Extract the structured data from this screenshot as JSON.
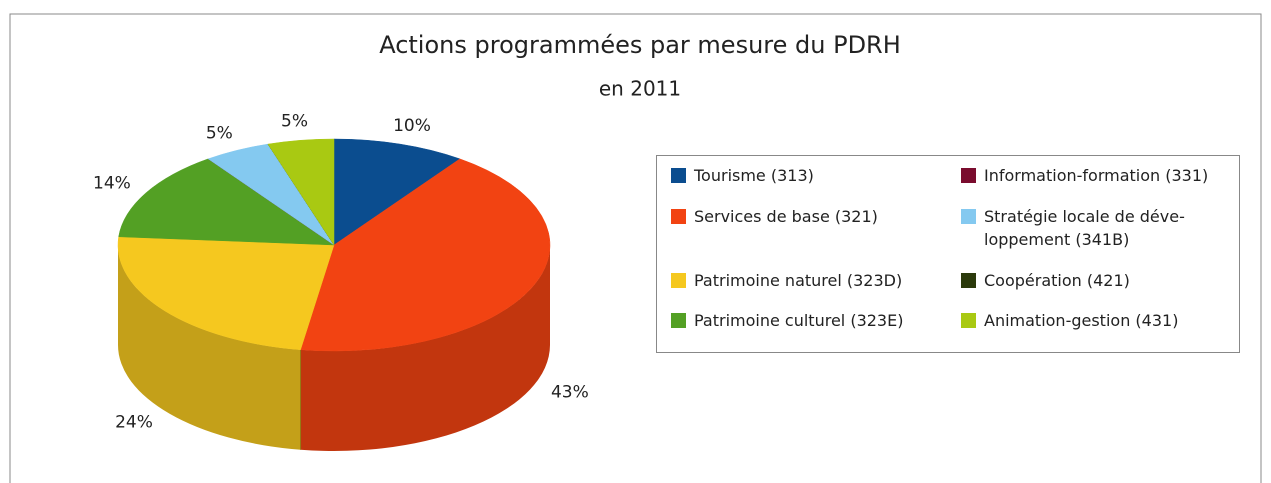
{
  "chart_data": {
    "type": "pie3d",
    "title": "Actions programmées par mesure du PDRH",
    "subtitle": "en 2011",
    "categories": [
      "Tourisme (313)",
      "Services de base (321)",
      "Patrimoine naturel (323D)",
      "Patrimoine culturel (323E)",
      "Information-formation (331)",
      "Stratégie locale de déve-loppement (341B)",
      "Coopération (421)",
      "Animation-gestion (431)"
    ],
    "values": [
      10,
      43,
      24,
      14,
      0,
      5,
      0,
      5
    ],
    "value_labels": [
      "10%",
      "43%",
      "24%",
      "14%",
      null,
      "5%",
      null,
      "5%"
    ],
    "colors": [
      "#0b4d8f",
      "#f24312",
      "#f5c81f",
      "#53a024",
      "#7a0c2e",
      "#84c9f0",
      "#2b3a0b",
      "#a9c912"
    ],
    "legend": "right"
  }
}
